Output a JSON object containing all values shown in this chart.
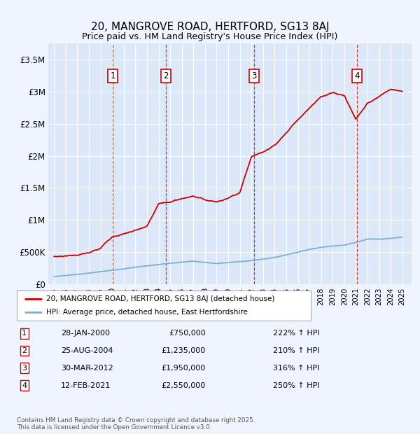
{
  "title": "20, MANGROVE ROAD, HERTFORD, SG13 8AJ",
  "subtitle": "Price paid vs. HM Land Registry's House Price Index (HPI)",
  "background_color": "#f0f4ff",
  "plot_bg_color": "#dce8f8",
  "sale_color": "#cc0000",
  "hpi_color": "#7bafd4",
  "ylim": [
    0,
    3750000
  ],
  "yticks": [
    0,
    500000,
    1000000,
    1500000,
    2000000,
    2500000,
    3000000,
    3500000
  ],
  "ytick_labels": [
    "£0",
    "£500K",
    "£1M",
    "£1.5M",
    "£2M",
    "£2.5M",
    "£3M",
    "£3.5M"
  ],
  "xlim_start": 1994.5,
  "xlim_end": 2025.8,
  "purchases": [
    {
      "date_year": 2000.07,
      "price": 750000,
      "label": "1"
    },
    {
      "date_year": 2004.65,
      "price": 1235000,
      "label": "2"
    },
    {
      "date_year": 2012.25,
      "price": 1950000,
      "label": "3"
    },
    {
      "date_year": 2021.12,
      "price": 2550000,
      "label": "4"
    }
  ],
  "legend_line1": "20, MANGROVE ROAD, HERTFORD, SG13 8AJ (detached house)",
  "legend_line2": "HPI: Average price, detached house, East Hertfordshire",
  "table": [
    {
      "num": "1",
      "date": "28-JAN-2000",
      "price": "£750,000",
      "hpi": "222% ↑ HPI"
    },
    {
      "num": "2",
      "date": "25-AUG-2004",
      "price": "£1,235,000",
      "hpi": "210% ↑ HPI"
    },
    {
      "num": "3",
      "date": "30-MAR-2012",
      "price": "£1,950,000",
      "hpi": "316% ↑ HPI"
    },
    {
      "num": "4",
      "date": "12-FEB-2021",
      "price": "£2,550,000",
      "hpi": "250% ↑ HPI"
    }
  ],
  "footer": "Contains HM Land Registry data © Crown copyright and database right 2025.\nThis data is licensed under the Open Government Licence v3.0.",
  "hpi_years": [
    1995,
    1996,
    1997,
    1998,
    1999,
    2000,
    2001,
    2002,
    2003,
    2004,
    2005,
    2006,
    2007,
    2008,
    2009,
    2010,
    2011,
    2012,
    2013,
    2014,
    2015,
    2016,
    2017,
    2018,
    2019,
    2020,
    2021,
    2022,
    2023,
    2024,
    2025
  ],
  "hpi_vals": [
    120000,
    135000,
    150000,
    168000,
    190000,
    215000,
    235000,
    258000,
    278000,
    300000,
    318000,
    338000,
    355000,
    335000,
    318000,
    330000,
    342000,
    358000,
    378000,
    405000,
    445000,
    490000,
    530000,
    565000,
    585000,
    600000,
    640000,
    700000,
    695000,
    710000,
    730000
  ],
  "prop_years": [
    1995,
    1996,
    1997,
    1998,
    1999,
    2000,
    2001,
    2002,
    2003,
    2004,
    2005,
    2006,
    2007,
    2008,
    2009,
    2010,
    2011,
    2012,
    2013,
    2014,
    2015,
    2016,
    2017,
    2018,
    2019,
    2020,
    2021,
    2022,
    2023,
    2024,
    2025
  ],
  "prop_vals": [
    430000,
    445000,
    465000,
    490000,
    560000,
    750000,
    800000,
    850000,
    900000,
    1235000,
    1270000,
    1320000,
    1370000,
    1310000,
    1280000,
    1340000,
    1390000,
    1950000,
    2020000,
    2130000,
    2320000,
    2530000,
    2720000,
    2900000,
    2970000,
    2920000,
    2550000,
    2800000,
    2920000,
    3020000,
    2980000
  ]
}
